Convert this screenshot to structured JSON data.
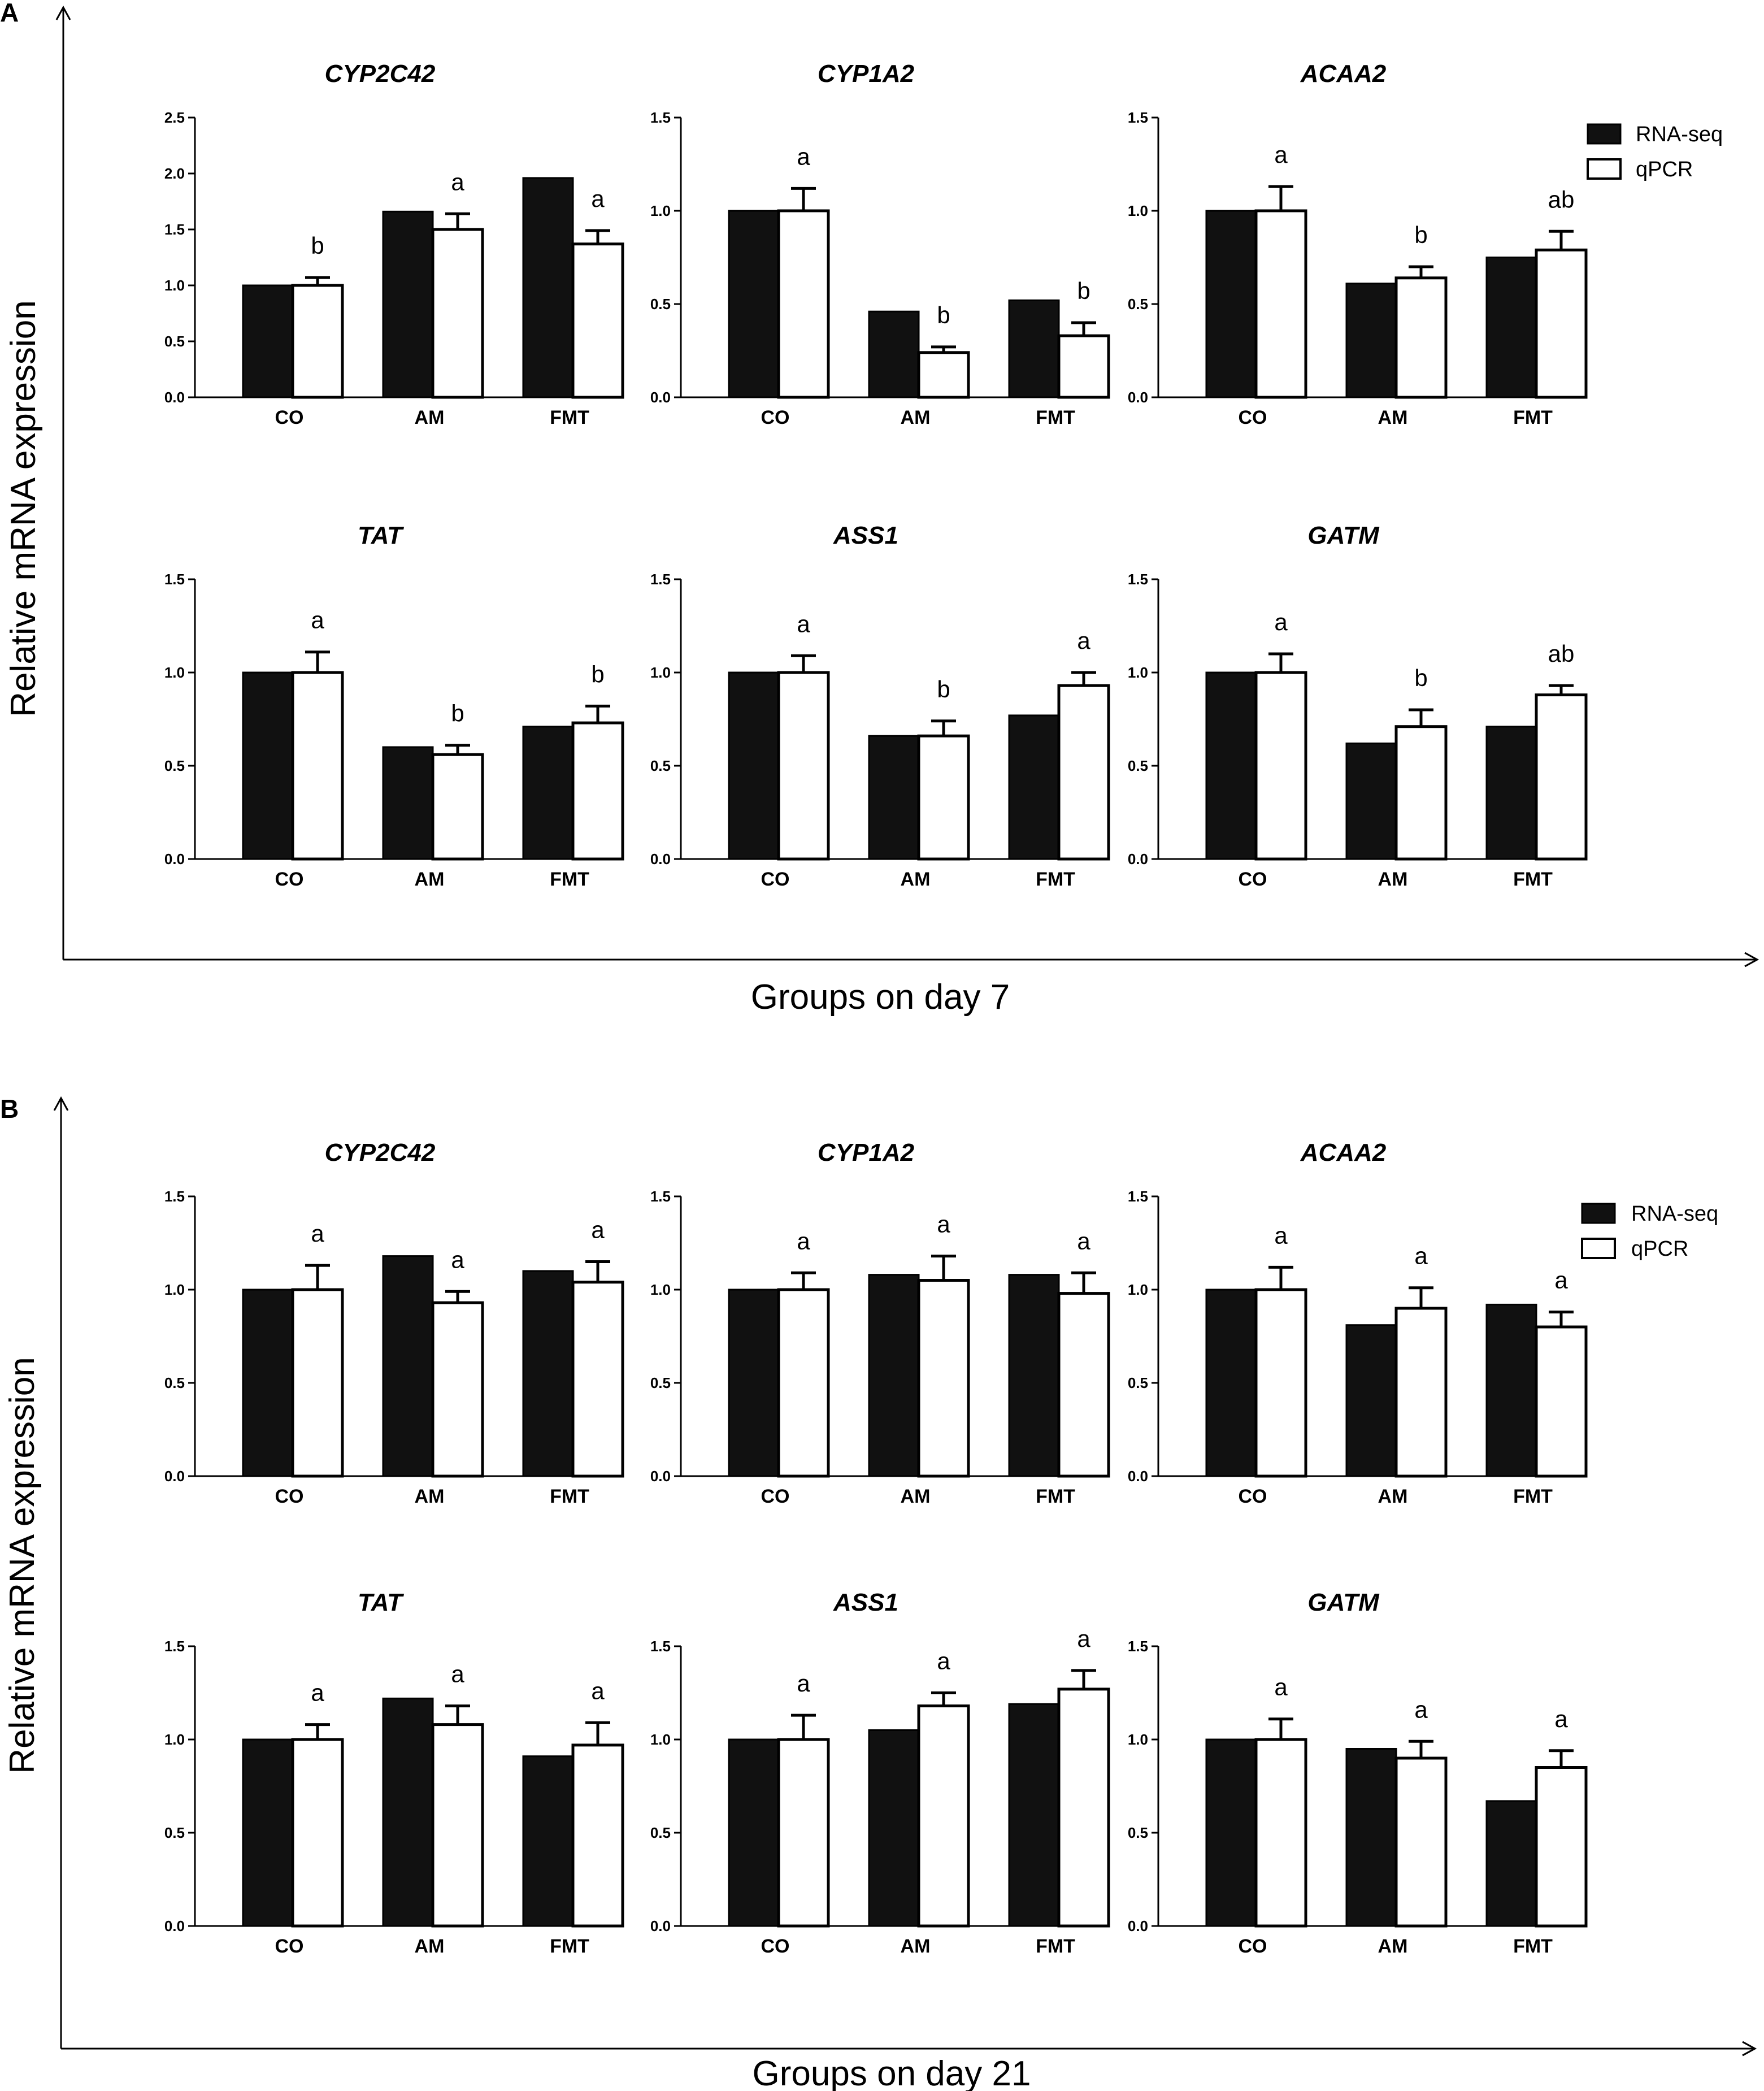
{
  "chart_data": [
    {
      "panel": "A",
      "type": "bar",
      "xlabel": "Groups on day 7",
      "ylabel": "Relative mRNA expression",
      "legend": [
        "RNA-seq",
        "qPCR"
      ],
      "charts": [
        {
          "title": "CYP2C42",
          "categories": [
            "CO",
            "AM",
            "FMT"
          ],
          "ylim": [
            0,
            2.5
          ],
          "yticks": [
            "0.0",
            "0.5",
            "1.0",
            "1.5",
            "2.0",
            "2.5"
          ],
          "series": [
            {
              "name": "RNA-seq",
              "values": [
                1.0,
                1.66,
                1.96
              ]
            },
            {
              "name": "qPCR",
              "values": [
                1.0,
                1.5,
                1.37
              ],
              "errors": [
                0.07,
                0.14,
                0.12
              ]
            }
          ],
          "labels": [
            "b",
            "a",
            "a"
          ]
        },
        {
          "title": "CYP1A2",
          "categories": [
            "CO",
            "AM",
            "FMT"
          ],
          "ylim": [
            0,
            1.5
          ],
          "yticks": [
            "0.0",
            "0.5",
            "1.0",
            "1.5"
          ],
          "series": [
            {
              "name": "RNA-seq",
              "values": [
                1.0,
                0.46,
                0.52
              ]
            },
            {
              "name": "qPCR",
              "values": [
                1.0,
                0.24,
                0.33
              ],
              "errors": [
                0.12,
                0.03,
                0.07
              ]
            }
          ],
          "labels": [
            "a",
            "b",
            "b"
          ]
        },
        {
          "title": "ACAA2",
          "categories": [
            "CO",
            "AM",
            "FMT"
          ],
          "ylim": [
            0,
            1.5
          ],
          "yticks": [
            "0.0",
            "0.5",
            "1.0",
            "1.5"
          ],
          "series": [
            {
              "name": "RNA-seq",
              "values": [
                1.0,
                0.61,
                0.75
              ]
            },
            {
              "name": "qPCR",
              "values": [
                1.0,
                0.64,
                0.79
              ],
              "errors": [
                0.13,
                0.06,
                0.1
              ]
            }
          ],
          "labels": [
            "a",
            "b",
            "ab"
          ]
        },
        {
          "title": "TAT",
          "categories": [
            "CO",
            "AM",
            "FMT"
          ],
          "ylim": [
            0,
            1.5
          ],
          "yticks": [
            "0.0",
            "0.5",
            "1.0",
            "1.5"
          ],
          "series": [
            {
              "name": "RNA-seq",
              "values": [
                1.0,
                0.6,
                0.71
              ]
            },
            {
              "name": "qPCR",
              "values": [
                1.0,
                0.56,
                0.73
              ],
              "errors": [
                0.11,
                0.05,
                0.09
              ]
            }
          ],
          "labels": [
            "a",
            "b",
            "b"
          ]
        },
        {
          "title": "ASS1",
          "categories": [
            "CO",
            "AM",
            "FMT"
          ],
          "ylim": [
            0,
            1.5
          ],
          "yticks": [
            "0.0",
            "0.5",
            "1.0",
            "1.5"
          ],
          "series": [
            {
              "name": "RNA-seq",
              "values": [
                1.0,
                0.66,
                0.77
              ]
            },
            {
              "name": "qPCR",
              "values": [
                1.0,
                0.66,
                0.93
              ],
              "errors": [
                0.09,
                0.08,
                0.07
              ]
            }
          ],
          "labels": [
            "a",
            "b",
            "a"
          ]
        },
        {
          "title": "GATM",
          "categories": [
            "CO",
            "AM",
            "FMT"
          ],
          "ylim": [
            0,
            1.5
          ],
          "yticks": [
            "0.0",
            "0.5",
            "1.0",
            "1.5"
          ],
          "series": [
            {
              "name": "RNA-seq",
              "values": [
                1.0,
                0.62,
                0.71
              ]
            },
            {
              "name": "qPCR",
              "values": [
                1.0,
                0.71,
                0.88
              ],
              "errors": [
                0.1,
                0.09,
                0.05
              ]
            }
          ],
          "labels": [
            "a",
            "b",
            "ab"
          ]
        }
      ]
    },
    {
      "panel": "B",
      "type": "bar",
      "xlabel": "Groups on day 21",
      "ylabel": "Relative mRNA expression",
      "legend": [
        "RNA-seq",
        "qPCR"
      ],
      "charts": [
        {
          "title": "CYP2C42",
          "categories": [
            "CO",
            "AM",
            "FMT"
          ],
          "ylim": [
            0,
            1.5
          ],
          "yticks": [
            "0.0",
            "0.5",
            "1.0",
            "1.5"
          ],
          "series": [
            {
              "name": "RNA-seq",
              "values": [
                1.0,
                1.18,
                1.1
              ]
            },
            {
              "name": "qPCR",
              "values": [
                1.0,
                0.93,
                1.04
              ],
              "errors": [
                0.13,
                0.06,
                0.11
              ]
            }
          ],
          "labels": [
            "a",
            "a",
            "a"
          ]
        },
        {
          "title": "CYP1A2",
          "categories": [
            "CO",
            "AM",
            "FMT"
          ],
          "ylim": [
            0,
            1.5
          ],
          "yticks": [
            "0.0",
            "0.5",
            "1.0",
            "1.5"
          ],
          "series": [
            {
              "name": "RNA-seq",
              "values": [
                1.0,
                1.08,
                1.08
              ]
            },
            {
              "name": "qPCR",
              "values": [
                1.0,
                1.05,
                0.98
              ],
              "errors": [
                0.09,
                0.13,
                0.11
              ]
            }
          ],
          "labels": [
            "a",
            "a",
            "a"
          ]
        },
        {
          "title": "ACAA2",
          "categories": [
            "CO",
            "AM",
            "FMT"
          ],
          "ylim": [
            0,
            1.5
          ],
          "yticks": [
            "0.0",
            "0.5",
            "1.0",
            "1.5"
          ],
          "series": [
            {
              "name": "RNA-seq",
              "values": [
                1.0,
                0.81,
                0.92
              ]
            },
            {
              "name": "qPCR",
              "values": [
                1.0,
                0.9,
                0.8
              ],
              "errors": [
                0.12,
                0.11,
                0.08
              ]
            }
          ],
          "labels": [
            "a",
            "a",
            "a"
          ]
        },
        {
          "title": "TAT",
          "categories": [
            "CO",
            "AM",
            "FMT"
          ],
          "ylim": [
            0,
            1.5
          ],
          "yticks": [
            "0.0",
            "0.5",
            "1.0",
            "1.5"
          ],
          "series": [
            {
              "name": "RNA-seq",
              "values": [
                1.0,
                1.22,
                0.91
              ]
            },
            {
              "name": "qPCR",
              "values": [
                1.0,
                1.08,
                0.97
              ],
              "errors": [
                0.08,
                0.1,
                0.12
              ]
            }
          ],
          "labels": [
            "a",
            "a",
            "a"
          ]
        },
        {
          "title": "ASS1",
          "categories": [
            "CO",
            "AM",
            "FMT"
          ],
          "ylim": [
            0,
            1.5
          ],
          "yticks": [
            "0.0",
            "0.5",
            "1.0",
            "1.5"
          ],
          "series": [
            {
              "name": "RNA-seq",
              "values": [
                1.0,
                1.05,
                1.19
              ]
            },
            {
              "name": "qPCR",
              "values": [
                1.0,
                1.18,
                1.27
              ],
              "errors": [
                0.13,
                0.07,
                0.1
              ]
            }
          ],
          "labels": [
            "a",
            "a",
            "a"
          ]
        },
        {
          "title": "GATM",
          "categories": [
            "CO",
            "AM",
            "FMT"
          ],
          "ylim": [
            0,
            1.5
          ],
          "yticks": [
            "0.0",
            "0.5",
            "1.0",
            "1.5"
          ],
          "series": [
            {
              "name": "RNA-seq",
              "values": [
                1.0,
                0.95,
                0.67
              ]
            },
            {
              "name": "qPCR",
              "values": [
                1.0,
                0.9,
                0.85
              ],
              "errors": [
                0.11,
                0.09,
                0.09
              ]
            }
          ],
          "labels": [
            "a",
            "a",
            "a"
          ]
        }
      ]
    }
  ]
}
